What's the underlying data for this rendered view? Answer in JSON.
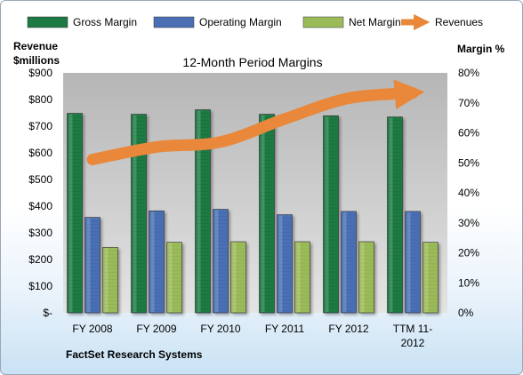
{
  "chart_data": {
    "type": "bar",
    "title": "12-Month Period Margins",
    "company": "FactSet Research Systems",
    "left_axis_title": [
      "Revenue",
      "$millions"
    ],
    "right_axis_title": "Margin %",
    "left_ticks": [
      "$-",
      "$100",
      "$200",
      "$300",
      "$400",
      "$500",
      "$600",
      "$700",
      "$800",
      "$900"
    ],
    "right_ticks": [
      "0%",
      "10%",
      "20%",
      "30%",
      "40%",
      "50%",
      "60%",
      "70%",
      "80%"
    ],
    "left_axis_range": [
      0,
      900
    ],
    "right_axis_range": [
      0,
      80
    ],
    "categories": [
      [
        "FY 2008"
      ],
      [
        "FY 2009"
      ],
      [
        "FY 2010"
      ],
      [
        "FY 2011"
      ],
      [
        "FY 2012"
      ],
      [
        "TTM 11-",
        "2012"
      ]
    ],
    "series": [
      {
        "name": "Gross Margin",
        "axis": "right",
        "color": "#1e7a43",
        "values": [
          66.5,
          66.2,
          67.7,
          66.2,
          65.7,
          65.3
        ]
      },
      {
        "name": "Operating Margin",
        "axis": "right",
        "color": "#4a6fb5",
        "values": [
          31.8,
          34.0,
          34.5,
          32.7,
          33.8,
          33.8
        ]
      },
      {
        "name": "Net Margin",
        "axis": "right",
        "color": "#9bbb59",
        "values": [
          21.8,
          23.5,
          23.7,
          23.7,
          23.7,
          23.5
        ]
      },
      {
        "name": "Revenues",
        "axis": "left",
        "type": "line",
        "color": "#e9883a",
        "values": [
          575,
          622,
          641,
          727,
          805,
          825
        ]
      }
    ],
    "legend_position": "top",
    "grid": false
  }
}
